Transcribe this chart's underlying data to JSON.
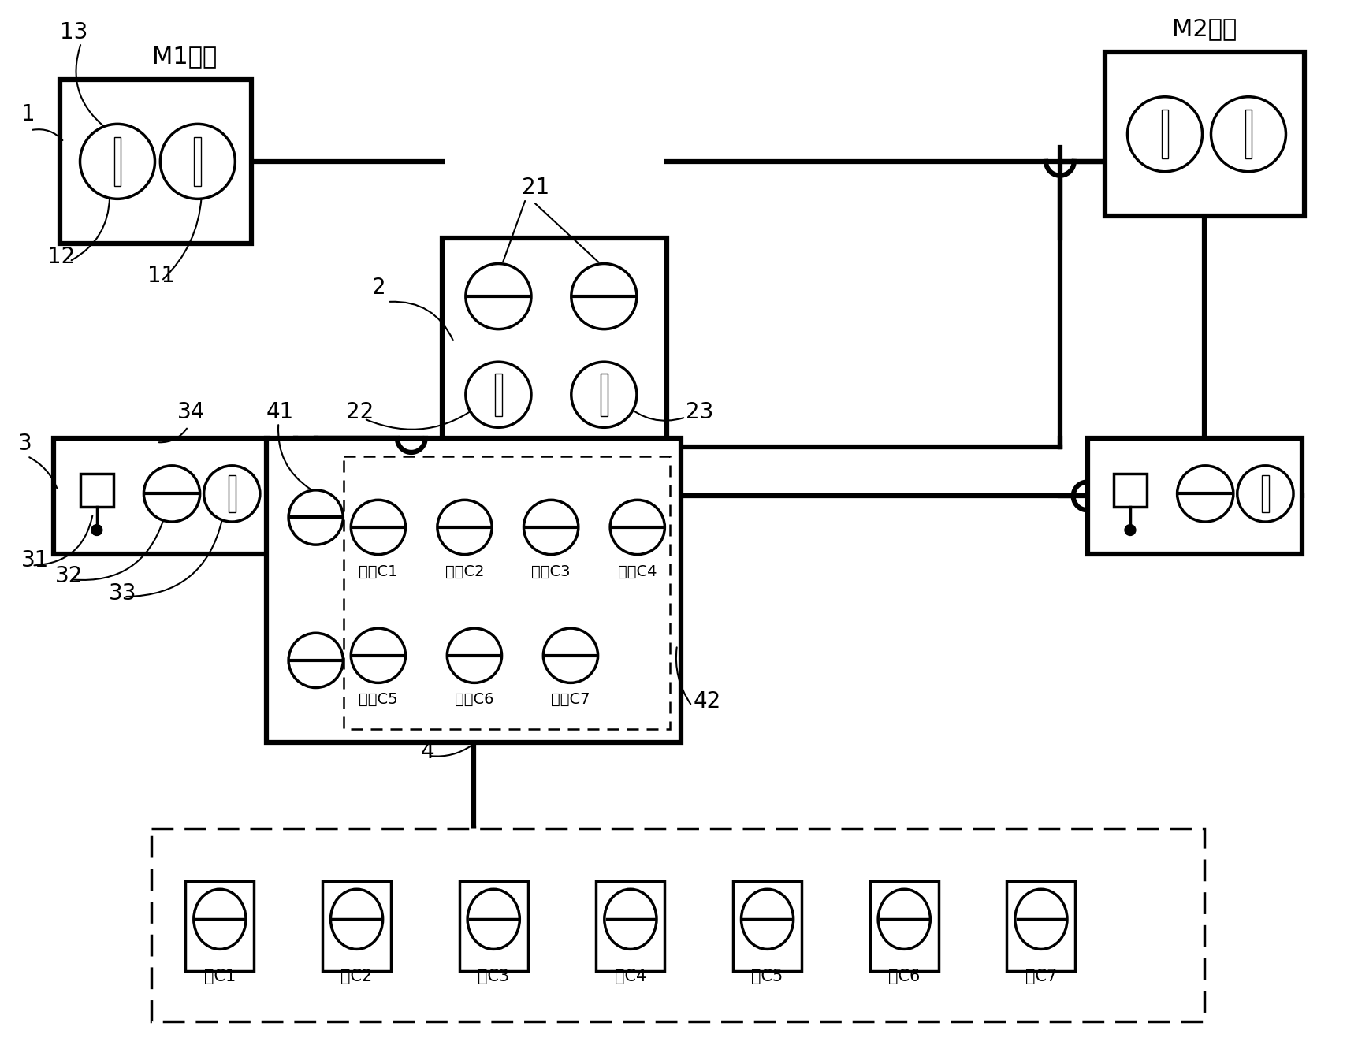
{
  "bg_color": "#ffffff",
  "lw": 2.5,
  "lw_thick": 4.5,
  "m1_label": "M1车厢",
  "m2_label": "M2车厢",
  "lock_labels": [
    "锁C1",
    "锁C2",
    "锁C3",
    "锁C4",
    "锁C5",
    "锁C6",
    "锁C7"
  ],
  "key_row1": [
    "钥匙C1",
    "钥匙C2",
    "钥匙C3",
    "钥匙C4"
  ],
  "key_row2": [
    "钥匙C5",
    "钥匙C6",
    "钥匙C7"
  ],
  "fontsize_label": 20,
  "fontsize_key": 14,
  "fontsize_lock": 15,
  "fontsize_title": 22
}
